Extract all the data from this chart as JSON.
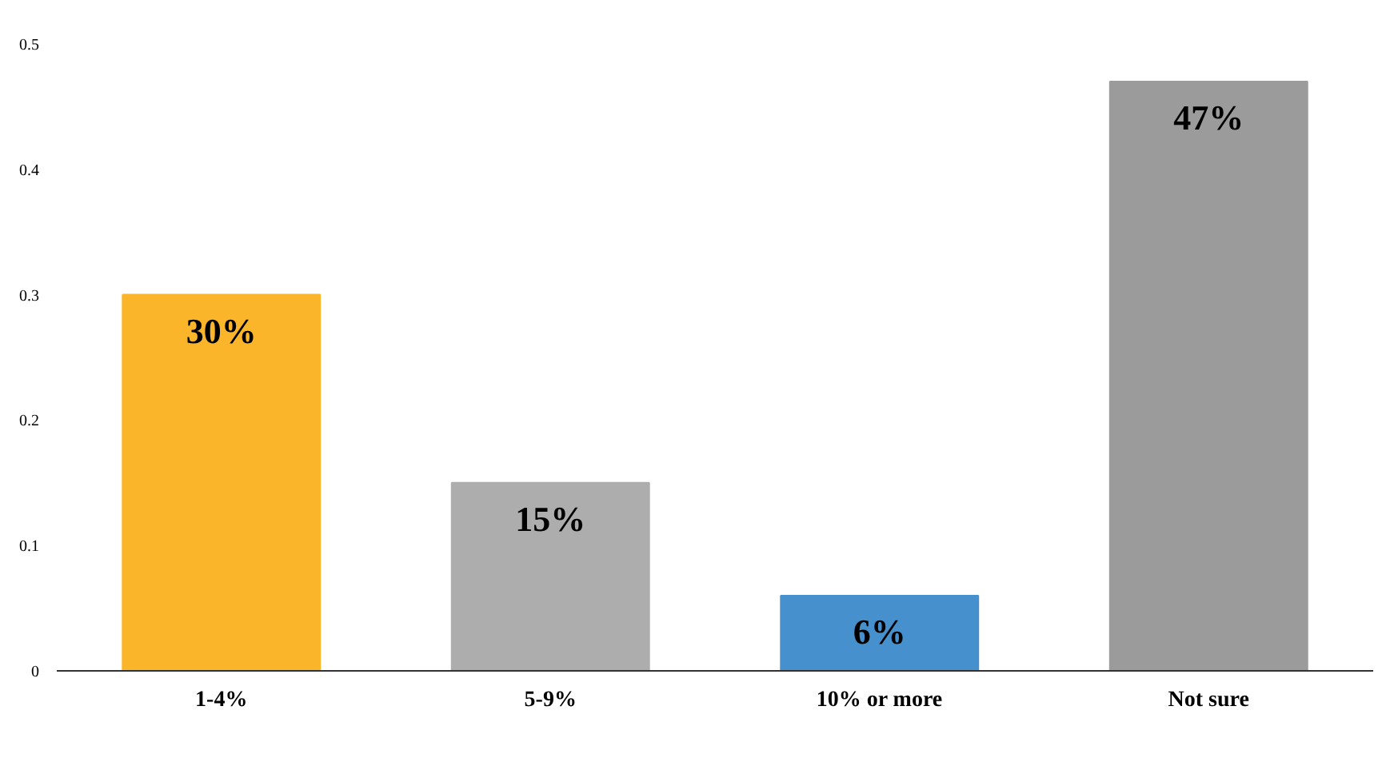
{
  "chart_data": {
    "type": "bar",
    "categories": [
      "1-4%",
      "5-9%",
      "10% or more",
      "Not sure"
    ],
    "values": [
      0.3,
      0.15,
      0.06,
      0.47
    ],
    "colors": [
      "#fbb52b",
      "#adadad",
      "#4690ce",
      "#9b9b9b"
    ],
    "value_labels": [
      "30%",
      "15%",
      "6%",
      "47%"
    ],
    "ylim": [
      0,
      0.5
    ],
    "yticks": [
      0,
      0.1,
      0.2,
      0.3,
      0.4,
      0.5
    ]
  }
}
